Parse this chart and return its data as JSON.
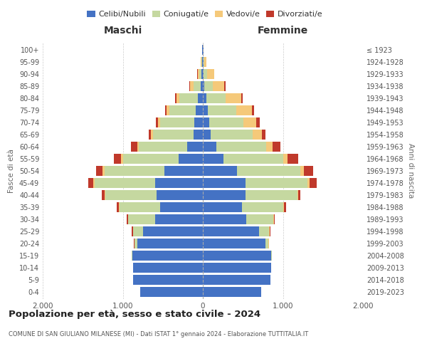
{
  "age_groups": [
    "0-4",
    "5-9",
    "10-14",
    "15-19",
    "20-24",
    "25-29",
    "30-34",
    "35-39",
    "40-44",
    "45-49",
    "50-54",
    "55-59",
    "60-64",
    "65-69",
    "70-74",
    "75-79",
    "80-84",
    "85-89",
    "90-94",
    "95-99",
    "100+"
  ],
  "birth_years": [
    "2019-2023",
    "2014-2018",
    "2009-2013",
    "2004-2008",
    "1999-2003",
    "1994-1998",
    "1989-1993",
    "1984-1988",
    "1979-1983",
    "1974-1978",
    "1969-1973",
    "1964-1968",
    "1959-1963",
    "1954-1958",
    "1949-1953",
    "1944-1948",
    "1939-1943",
    "1934-1938",
    "1929-1933",
    "1924-1928",
    "≤ 1923"
  ],
  "maschi": {
    "celibi": [
      780,
      870,
      870,
      880,
      820,
      750,
      600,
      530,
      580,
      600,
      480,
      300,
      200,
      120,
      110,
      90,
      60,
      30,
      15,
      10,
      5
    ],
    "coniugati": [
      0,
      0,
      5,
      10,
      30,
      120,
      330,
      510,
      640,
      750,
      750,
      700,
      600,
      500,
      420,
      330,
      230,
      90,
      30,
      10,
      2
    ],
    "vedovi": [
      0,
      0,
      0,
      0,
      5,
      5,
      5,
      10,
      10,
      20,
      20,
      20,
      20,
      30,
      30,
      30,
      40,
      40,
      20,
      5,
      1
    ],
    "divorziati": [
      0,
      0,
      0,
      0,
      5,
      10,
      15,
      30,
      30,
      60,
      80,
      90,
      80,
      30,
      30,
      20,
      15,
      10,
      5,
      0,
      0
    ]
  },
  "femmine": {
    "nubili": [
      730,
      840,
      850,
      850,
      780,
      700,
      540,
      490,
      530,
      530,
      430,
      260,
      170,
      100,
      80,
      60,
      40,
      20,
      10,
      10,
      5
    ],
    "coniugate": [
      0,
      0,
      5,
      10,
      40,
      130,
      340,
      510,
      650,
      780,
      790,
      740,
      620,
      520,
      430,
      360,
      240,
      100,
      40,
      10,
      2
    ],
    "vedove": [
      0,
      0,
      0,
      0,
      5,
      5,
      5,
      10,
      10,
      20,
      40,
      60,
      80,
      120,
      160,
      190,
      200,
      150,
      90,
      25,
      2
    ],
    "divorziate": [
      0,
      0,
      0,
      0,
      5,
      10,
      15,
      30,
      30,
      90,
      120,
      130,
      100,
      40,
      40,
      30,
      20,
      10,
      5,
      0,
      0
    ]
  },
  "colors": {
    "celibi_nubili": "#4472C4",
    "coniugati": "#C5D8A0",
    "vedovi": "#F5C97A",
    "divorziati": "#C0392B"
  },
  "title": "Popolazione per età, sesso e stato civile - 2024",
  "subtitle": "COMUNE DI SAN GIULIANO MILANESE (MI) - Dati ISTAT 1° gennaio 2024 - Elaborazione TUTTITALIA.IT",
  "xlabel_left": "Maschi",
  "xlabel_right": "Femmine",
  "ylabel_left": "Fasce di età",
  "ylabel_right": "Anni di nascita",
  "xlim": 2000,
  "background_color": "#ffffff",
  "legend_labels": [
    "Celibi/Nubili",
    "Coniugati/e",
    "Vedovi/e",
    "Divorziati/e"
  ]
}
